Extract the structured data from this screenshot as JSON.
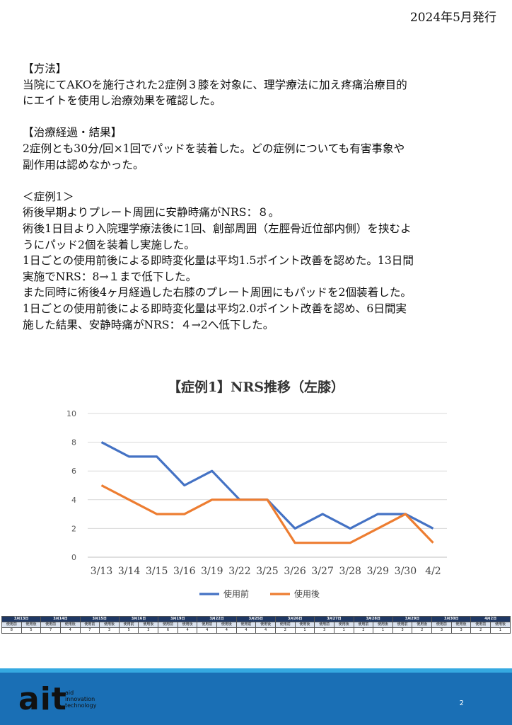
{
  "header": {
    "publish_date": "2024年5月発行"
  },
  "body": {
    "methods_heading": "【方法】",
    "methods_lines": [
      "当院にてAKOを施行された2症例３膝を対象に、理学療法に加え疼痛治療目的",
      "にエイトを使用し治療効果を確認した。"
    ],
    "results_heading": "【治療経過・結果】",
    "results_lines": [
      "2症例とも30分/回×1回でパッドを装着した。どの症例についても有害事象や",
      "副作用は認めなかった。"
    ],
    "case1_heading": "＜症例1＞",
    "case1_lines": [
      "術後早期よりプレート周囲に安静時痛がNRS：８。",
      "術後1日目より入院理学療法後に1回、創部周囲（左脛骨近位部内側）を挟むよ",
      "うにパッド2個を装着し実施した。",
      "1日ごとの使用前後による即時変化量は平均1.5ポイント改善を認めた。13日間",
      "実施でNRS：8→１まで低下した。",
      "また同時に術後4ヶ月経過した右膝のプレート周囲にもパッドを2個装着した。",
      "1日ごとの使用前後による即時変化量は平均2.0ポイント改善を認め、6日間実",
      "施した結果、安静時痛がNRS：４→2へ低下した。"
    ]
  },
  "chart_data": {
    "type": "line",
    "title": "【症例1】NRS推移（左膝）",
    "categories": [
      "3/13",
      "3/14",
      "3/15",
      "3/16",
      "3/19",
      "3/22",
      "3/25",
      "3/26",
      "3/27",
      "3/28",
      "3/29",
      "3/30",
      "4/2"
    ],
    "series": [
      {
        "name": "使用前",
        "color": "#4472c4",
        "values": [
          8,
          7,
          7,
          5,
          6,
          4,
          4,
          2,
          3,
          2,
          3,
          3,
          2
        ]
      },
      {
        "name": "使用後",
        "color": "#ed7d31",
        "values": [
          5,
          4,
          3,
          3,
          4,
          4,
          4,
          1,
          1,
          1,
          2,
          3,
          1
        ]
      }
    ],
    "ylim": [
      0,
      10
    ],
    "yticks": [
      0,
      2,
      4,
      6,
      8,
      10
    ],
    "grid": true,
    "legend": "bottom"
  },
  "table": {
    "dates": [
      "3月13日",
      "3月14日",
      "3月15日",
      "3月16日",
      "3月19日",
      "3月22日",
      "3月25日",
      "3月26日",
      "3月27日",
      "3月28日",
      "3月29日",
      "3月30日",
      "4月2日"
    ],
    "sub_before": "使用前",
    "sub_after": "使用後",
    "values": [
      [
        8,
        5
      ],
      [
        7,
        4
      ],
      [
        7,
        3
      ],
      [
        5,
        3
      ],
      [
        6,
        4
      ],
      [
        4,
        4
      ],
      [
        4,
        4
      ],
      [
        2,
        1
      ],
      [
        3,
        1
      ],
      [
        2,
        1
      ],
      [
        3,
        2
      ],
      [
        3,
        3
      ],
      [
        2,
        1
      ]
    ]
  },
  "footer": {
    "logo_mark": "ait",
    "logo_lines": [
      "aid",
      "innovation",
      "technology"
    ],
    "page_number": "2"
  }
}
